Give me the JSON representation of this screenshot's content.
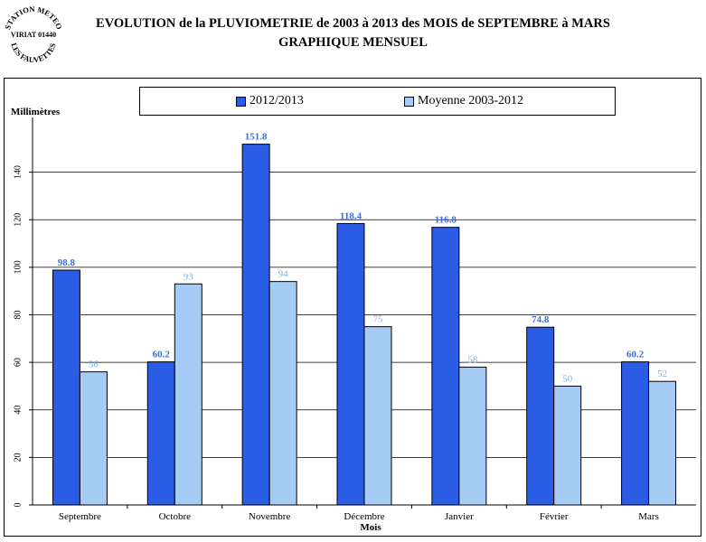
{
  "header": {
    "title_line1": "EVOLUTION de la PLUVIOMETRIE de 2003 à 2013 des MOIS de SEPTEMBRE à MARS",
    "title_line2": "GRAPHIQUE MENSUEL"
  },
  "stamp": {
    "top_text": "STATION METEO",
    "middle_text": "VIRIAT 01440",
    "bottom_text": "LES FAUVETTES"
  },
  "colors": {
    "series_2012_2013": "#2b5ce6",
    "series_moyenne": "#a6cbf5",
    "label_2012_2013": "#3a6fd8",
    "label_moyenne": "#7fb2ec"
  },
  "chart_data": {
    "type": "bar",
    "categories": [
      "Septembre",
      "Octobre",
      "Novembre",
      "Décembre",
      "Janvier",
      "Février",
      "Mars"
    ],
    "series": [
      {
        "name": "2012/2013",
        "values": [
          98.8,
          60.2,
          151.8,
          118.4,
          116.8,
          74.8,
          60.2
        ],
        "labels": [
          "98.8",
          "60.2",
          "151.8",
          "118.4",
          "116.8",
          "74.8",
          "60.2"
        ]
      },
      {
        "name": "Moyenne 2003-2012",
        "values": [
          56,
          93,
          94,
          75,
          58,
          50,
          52
        ],
        "labels": [
          "56",
          "93",
          "94",
          "75",
          "58",
          "50",
          "52"
        ]
      }
    ],
    "xlabel": "Mois",
    "ylabel": "Millimètres",
    "ylim": [
      0,
      160
    ],
    "yticks": [
      0,
      20,
      40,
      60,
      80,
      100,
      120,
      140
    ],
    "grid": true,
    "legend": "top"
  }
}
